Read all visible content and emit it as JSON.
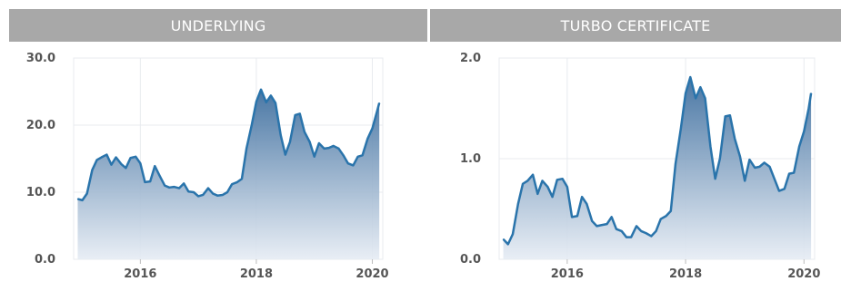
{
  "panels": [
    {
      "title": "UNDERLYING"
    },
    {
      "title": "TURBO CERTIFICATE"
    }
  ],
  "colors": {
    "header_bg": "#a8a8a8",
    "line": "#2a74ab",
    "fill_top": "#3f6f9f",
    "fill_bottom": "#e6ecf4",
    "grid": "#e8ebef"
  },
  "chart_data": [
    {
      "type": "area",
      "title": "UNDERLYING",
      "xlabel": "",
      "ylabel": "",
      "grid": true,
      "xlim": [
        2014.85,
        2020.18
      ],
      "ylim": [
        0,
        30
      ],
      "x_ticks": [
        2016,
        2018,
        2020
      ],
      "x_tick_labels": [
        "2016",
        "2018",
        "2020"
      ],
      "y_ticks": [
        0,
        10,
        20,
        30
      ],
      "y_tick_labels": [
        "0.0",
        "10.0",
        "20.0",
        "30.0"
      ],
      "x": [
        2014.92,
        2015.0,
        2015.08,
        2015.17,
        2015.25,
        2015.33,
        2015.42,
        2015.5,
        2015.58,
        2015.67,
        2015.75,
        2015.83,
        2015.92,
        2016.0,
        2016.08,
        2016.17,
        2016.25,
        2016.33,
        2016.42,
        2016.5,
        2016.58,
        2016.67,
        2016.75,
        2016.83,
        2016.92,
        2017.0,
        2017.08,
        2017.17,
        2017.25,
        2017.33,
        2017.42,
        2017.5,
        2017.58,
        2017.67,
        2017.75,
        2017.83,
        2017.92,
        2018.0,
        2018.08,
        2018.17,
        2018.25,
        2018.33,
        2018.42,
        2018.5,
        2018.58,
        2018.67,
        2018.75,
        2018.83,
        2018.92,
        2019.0,
        2019.08,
        2019.17,
        2019.25,
        2019.33,
        2019.42,
        2019.5,
        2019.58,
        2019.67,
        2019.75,
        2019.83,
        2019.92,
        2020.0,
        2020.08,
        2020.12
      ],
      "series": [
        {
          "values": [
            9.0,
            8.8,
            9.8,
            13.3,
            14.8,
            15.2,
            15.6,
            14.1,
            15.2,
            14.2,
            13.6,
            15.1,
            15.3,
            14.3,
            11.5,
            11.6,
            13.9,
            12.5,
            11.0,
            10.7,
            10.8,
            10.6,
            11.3,
            10.1,
            10.0,
            9.4,
            9.6,
            10.6,
            9.8,
            9.5,
            9.6,
            10.0,
            11.2,
            11.5,
            12.0,
            16.5,
            20.0,
            23.5,
            25.3,
            23.4,
            24.4,
            23.3,
            18.5,
            15.6,
            17.5,
            21.5,
            21.7,
            19.0,
            17.5,
            15.3,
            17.3,
            16.5,
            16.6,
            16.9,
            16.5,
            15.5,
            14.3,
            14.0,
            15.3,
            15.5,
            18.0,
            19.5,
            22.0,
            23.3
          ]
        }
      ]
    },
    {
      "type": "area",
      "title": "TURBO CERTIFICATE",
      "xlabel": "",
      "ylabel": "",
      "grid": true,
      "xlim": [
        2014.85,
        2020.18
      ],
      "ylim": [
        0,
        2.0
      ],
      "x_ticks": [
        2016,
        2018,
        2020
      ],
      "x_tick_labels": [
        "2016",
        "2018",
        "2020"
      ],
      "y_ticks": [
        0,
        1.0,
        2.0
      ],
      "y_tick_labels": [
        "0.0",
        "1.0",
        "2.0"
      ],
      "x": [
        2014.92,
        2015.0,
        2015.08,
        2015.17,
        2015.25,
        2015.33,
        2015.42,
        2015.5,
        2015.58,
        2015.67,
        2015.75,
        2015.83,
        2015.92,
        2016.0,
        2016.08,
        2016.17,
        2016.25,
        2016.33,
        2016.42,
        2016.5,
        2016.58,
        2016.67,
        2016.75,
        2016.83,
        2016.92,
        2017.0,
        2017.08,
        2017.17,
        2017.25,
        2017.33,
        2017.42,
        2017.5,
        2017.58,
        2017.67,
        2017.75,
        2017.83,
        2017.92,
        2018.0,
        2018.08,
        2018.17,
        2018.25,
        2018.33,
        2018.42,
        2018.5,
        2018.58,
        2018.67,
        2018.75,
        2018.83,
        2018.92,
        2019.0,
        2019.08,
        2019.17,
        2019.25,
        2019.33,
        2019.42,
        2019.5,
        2019.58,
        2019.67,
        2019.75,
        2019.83,
        2019.92,
        2020.0,
        2020.08,
        2020.12
      ],
      "series": [
        {
          "values": [
            0.2,
            0.15,
            0.25,
            0.55,
            0.75,
            0.78,
            0.84,
            0.65,
            0.78,
            0.72,
            0.62,
            0.79,
            0.8,
            0.72,
            0.42,
            0.43,
            0.62,
            0.55,
            0.38,
            0.33,
            0.34,
            0.35,
            0.42,
            0.3,
            0.28,
            0.22,
            0.22,
            0.33,
            0.28,
            0.26,
            0.23,
            0.28,
            0.4,
            0.43,
            0.48,
            0.95,
            1.3,
            1.65,
            1.81,
            1.6,
            1.71,
            1.6,
            1.12,
            0.8,
            1.0,
            1.42,
            1.43,
            1.2,
            1.02,
            0.78,
            0.99,
            0.91,
            0.92,
            0.96,
            0.92,
            0.8,
            0.68,
            0.7,
            0.85,
            0.86,
            1.12,
            1.27,
            1.5,
            1.65
          ]
        }
      ]
    }
  ]
}
